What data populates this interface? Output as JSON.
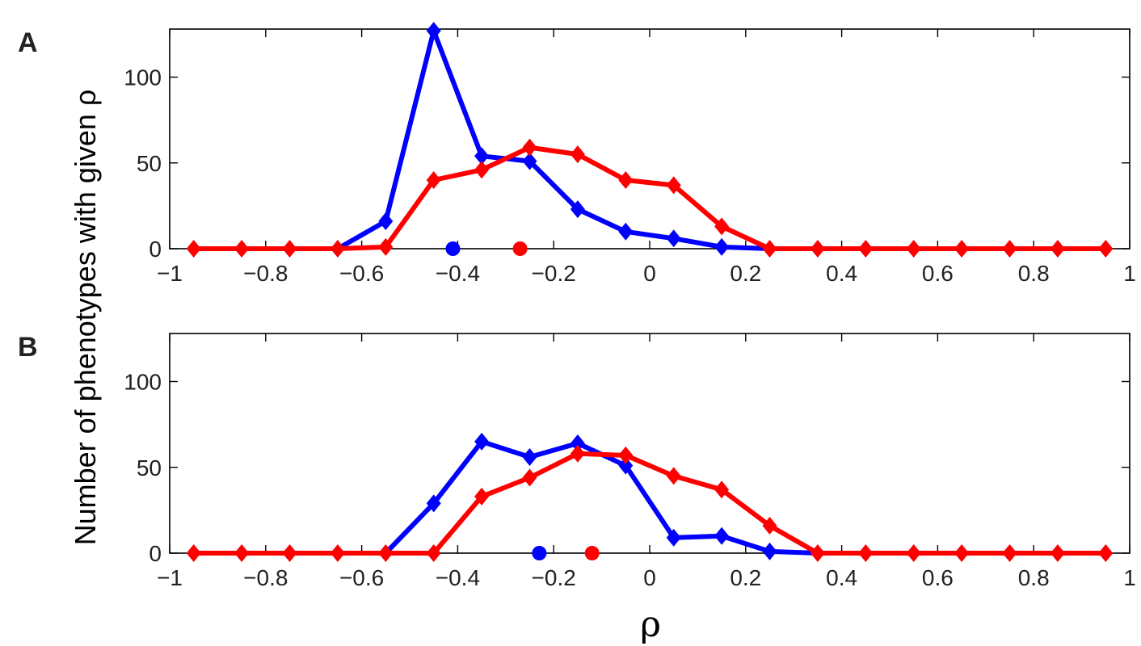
{
  "figure": {
    "ylabel": "Number of phenotypes with given ρ",
    "xlabel": "ρ"
  },
  "colors": {
    "blue": "#0000ff",
    "red": "#ff0000",
    "axes": "#000000"
  },
  "chart_data": [
    {
      "panel": "A",
      "type": "line",
      "xlim": [
        -1,
        1
      ],
      "ylim": [
        0,
        128
      ],
      "xticks": [
        "−1",
        "−0.8",
        "−0.6",
        "−0.4",
        "−0.2",
        "0",
        "0.2",
        "0.4",
        "0.6",
        "0.8",
        "1"
      ],
      "xtick_values": [
        -1,
        -0.8,
        -0.6,
        -0.4,
        -0.2,
        0,
        0.2,
        0.4,
        0.6,
        0.8,
        1
      ],
      "yticks": [
        "0",
        "50",
        "100"
      ],
      "ytick_values": [
        0,
        50,
        100
      ],
      "series": [
        {
          "color": "blue",
          "x": [
            -0.65,
            -0.55,
            -0.45,
            -0.35,
            -0.25,
            -0.15,
            -0.05,
            0.05,
            0.15,
            0.25
          ],
          "y": [
            0,
            16,
            127,
            54,
            51,
            23,
            10,
            6,
            1,
            0
          ],
          "marker_points": [
            -0.55,
            -0.45,
            -0.35,
            -0.25,
            -0.15,
            -0.05,
            0.05,
            0.15
          ],
          "mean": -0.41
        },
        {
          "color": "red",
          "x": [
            -0.95,
            -0.85,
            -0.75,
            -0.65,
            -0.55,
            -0.45,
            -0.35,
            -0.25,
            -0.15,
            -0.05,
            0.05,
            0.15,
            0.25,
            0.35,
            0.45,
            0.55,
            0.65,
            0.75,
            0.85,
            0.95
          ],
          "y": [
            0,
            0,
            0,
            0,
            1,
            40,
            46,
            59,
            55,
            40,
            37,
            13,
            0,
            0,
            0,
            0,
            0,
            0,
            0,
            0
          ],
          "mean": -0.27
        }
      ]
    },
    {
      "panel": "B",
      "type": "line",
      "xlim": [
        -1,
        1
      ],
      "ylim": [
        0,
        128
      ],
      "xticks": [
        "−1",
        "−0.8",
        "−0.6",
        "−0.4",
        "−0.2",
        "0",
        "0.2",
        "0.4",
        "0.6",
        "0.8",
        "1"
      ],
      "xtick_values": [
        -1,
        -0.8,
        -0.6,
        -0.4,
        -0.2,
        0,
        0.2,
        0.4,
        0.6,
        0.8,
        1
      ],
      "yticks": [
        "0",
        "50",
        "100"
      ],
      "ytick_values": [
        0,
        50,
        100
      ],
      "series": [
        {
          "color": "blue",
          "x": [
            -0.55,
            -0.45,
            -0.35,
            -0.25,
            -0.15,
            -0.05,
            0.05,
            0.15,
            0.25,
            0.35
          ],
          "y": [
            0,
            29,
            65,
            56,
            64,
            51,
            9,
            10,
            1,
            0
          ],
          "marker_points": [
            -0.45,
            -0.35,
            -0.25,
            -0.15,
            -0.05,
            0.05,
            0.15,
            0.25
          ],
          "mean": -0.23
        },
        {
          "color": "red",
          "x": [
            -0.95,
            -0.85,
            -0.75,
            -0.65,
            -0.55,
            -0.45,
            -0.35,
            -0.25,
            -0.15,
            -0.05,
            0.05,
            0.15,
            0.25,
            0.35,
            0.45,
            0.55,
            0.65,
            0.75,
            0.85,
            0.95
          ],
          "y": [
            0,
            0,
            0,
            0,
            0,
            0,
            33,
            44,
            58,
            57,
            45,
            37,
            16,
            0,
            0,
            0,
            0,
            0,
            0,
            0
          ],
          "mean": -0.12
        }
      ]
    }
  ]
}
